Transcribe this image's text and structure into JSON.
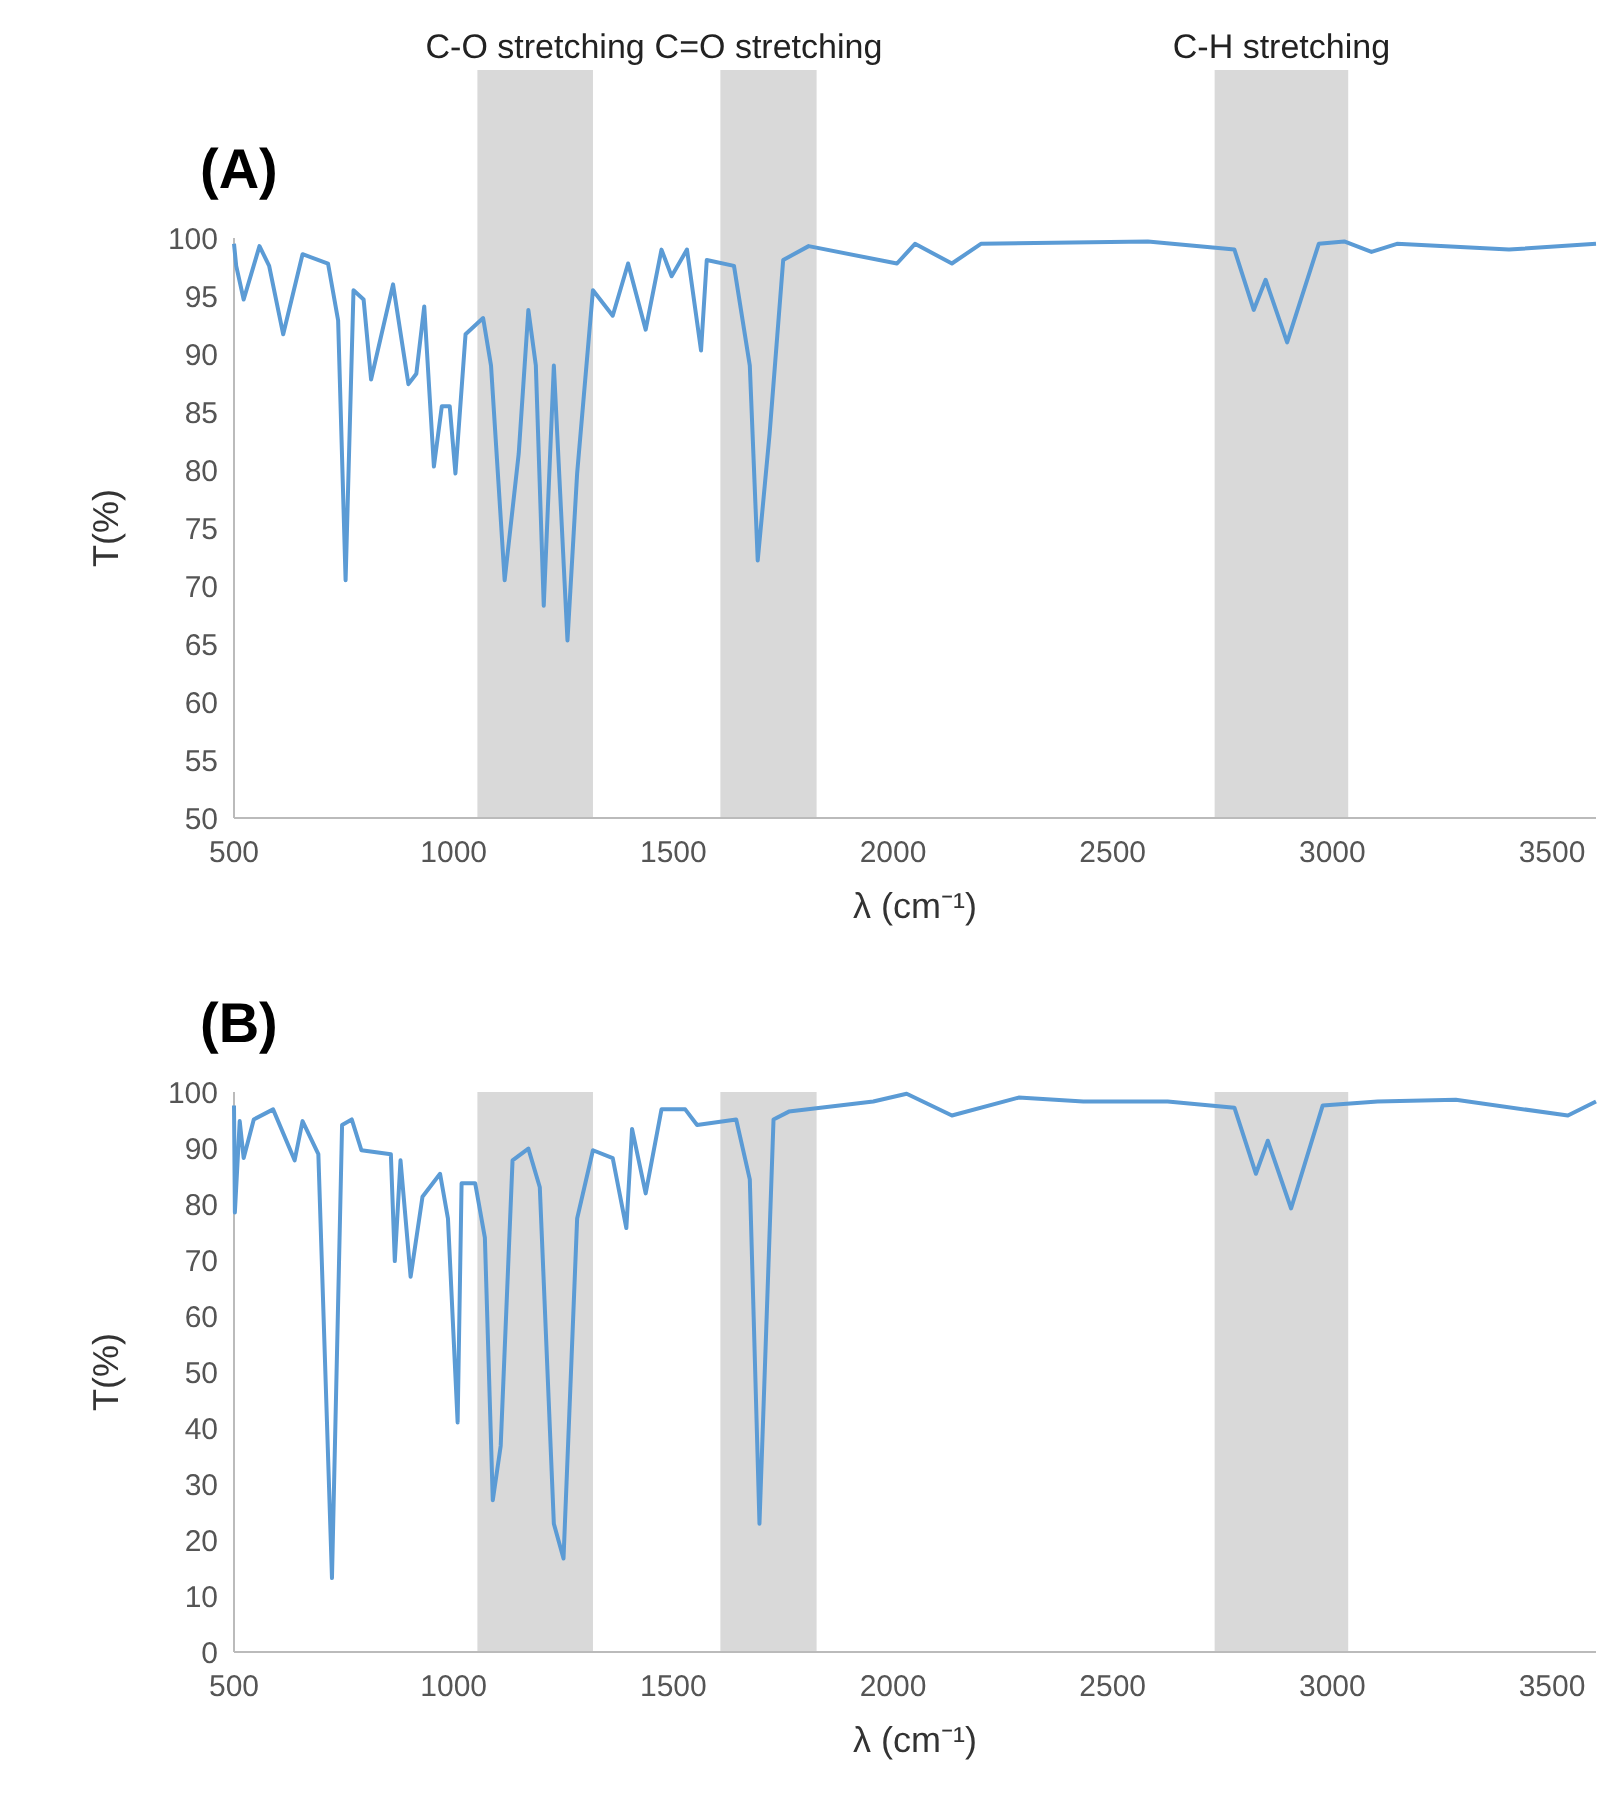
{
  "chart_data": [
    {
      "type": "line",
      "title": "(A)",
      "xlabel": "λ  (cm⁻¹)",
      "ylabel": "T(%)",
      "xlim": [
        500,
        3600
      ],
      "ylim": [
        50,
        100
      ],
      "xticks": [
        500,
        1000,
        1500,
        2000,
        2500,
        3000,
        3500
      ],
      "yticks": [
        50,
        55,
        60,
        65,
        70,
        75,
        80,
        85,
        90,
        95,
        100
      ],
      "grid": false,
      "marker": "none",
      "line_style": "solid",
      "bands": [
        {
          "axis": "x",
          "from": 1054,
          "to": 1317,
          "label": "C-O stretching",
          "color": "#d9d9d9"
        },
        {
          "axis": "x",
          "from": 1607,
          "to": 1826,
          "label": "C=O stretching",
          "color": "#d9d9d9"
        },
        {
          "axis": "x",
          "from": 2732,
          "to": 3036,
          "label": "C-H stretching",
          "color": "#d9d9d9"
        }
      ],
      "series": [
        {
          "color": "#5b9bd5",
          "x": [
            500,
            505,
            522,
            558,
            580,
            612,
            656,
            714,
            737,
            754,
            772,
            795,
            812,
            862,
            897,
            915,
            933,
            955,
            973,
            991,
            1004,
            1027,
            1067,
            1085,
            1116,
            1148,
            1170,
            1187,
            1205,
            1228,
            1259,
            1281,
            1317,
            1362,
            1397,
            1437,
            1473,
            1496,
            1531,
            1563,
            1576,
            1638,
            1674,
            1692,
            1719,
            1750,
            1808,
            2009,
            2050,
            2134,
            2200,
            2580,
            2777,
            2821,
            2848,
            2897,
            2969,
            3027,
            3089,
            3147,
            3402,
            3600
          ],
          "values": [
            99.5,
            97.6,
            94.7,
            99.3,
            97.6,
            91.7,
            98.6,
            97.8,
            92.9,
            70.5,
            95.5,
            94.7,
            87.8,
            96.0,
            87.4,
            88.3,
            94.1,
            80.3,
            85.5,
            85.5,
            79.7,
            91.7,
            93.1,
            89.0,
            70.5,
            81.4,
            93.8,
            89.0,
            68.3,
            89.0,
            65.3,
            79.7,
            95.5,
            93.3,
            97.8,
            92.1,
            99.0,
            96.7,
            99.0,
            90.3,
            98.1,
            97.6,
            89.0,
            72.2,
            83.1,
            98.1,
            99.3,
            97.8,
            99.5,
            97.8,
            99.5,
            99.7,
            99.0,
            93.8,
            96.4,
            91.0,
            99.5,
            99.7,
            98.8,
            99.5,
            99.0,
            99.5
          ]
        }
      ]
    },
    {
      "type": "line",
      "title": "(B)",
      "xlabel": "λ  (cm⁻¹)",
      "ylabel": "T(%)",
      "xlim": [
        500,
        3600
      ],
      "ylim": [
        0,
        100
      ],
      "xticks": [
        500,
        1000,
        1500,
        2000,
        2500,
        3000,
        3500
      ],
      "yticks": [
        0,
        10,
        20,
        30,
        40,
        50,
        60,
        70,
        80,
        90,
        100
      ],
      "grid": false,
      "marker": "none",
      "line_style": "solid",
      "bands": [
        {
          "axis": "x",
          "from": 1054,
          "to": 1317,
          "color": "#d9d9d9"
        },
        {
          "axis": "x",
          "from": 1607,
          "to": 1826,
          "color": "#d9d9d9"
        },
        {
          "axis": "x",
          "from": 2732,
          "to": 3036,
          "color": "#d9d9d9"
        }
      ],
      "series": [
        {
          "color": "#5b9bd5",
          "x": [
            500,
            502,
            513,
            522,
            545,
            589,
            638,
            656,
            692,
            723,
            746,
            768,
            790,
            857,
            866,
            879,
            902,
            929,
            969,
            987,
            1009,
            1018,
            1049,
            1071,
            1089,
            1107,
            1134,
            1170,
            1196,
            1228,
            1250,
            1281,
            1317,
            1362,
            1393,
            1406,
            1437,
            1473,
            1527,
            1554,
            1643,
            1674,
            1696,
            1728,
            1763,
            1955,
            2031,
            2134,
            2286,
            2433,
            2625,
            2777,
            2826,
            2853,
            2906,
            2978,
            3103,
            3281,
            3536,
            3600
          ],
          "values": [
            97.6,
            78.5,
            94.8,
            88.2,
            95.1,
            96.9,
            87.8,
            94.8,
            88.9,
            13.2,
            94.1,
            95.1,
            89.6,
            88.9,
            69.8,
            87.8,
            67.0,
            81.3,
            85.4,
            77.4,
            41.0,
            83.7,
            83.7,
            74.0,
            27.1,
            36.8,
            87.8,
            89.9,
            83.0,
            22.9,
            16.7,
            77.4,
            89.6,
            88.2,
            75.7,
            93.4,
            81.9,
            96.9,
            96.9,
            94.1,
            95.1,
            84.4,
            22.9,
            95.1,
            96.5,
            98.3,
            99.7,
            95.8,
            99.0,
            98.3,
            98.3,
            97.2,
            85.4,
            91.3,
            79.2,
            97.6,
            98.3,
            98.6,
            95.8,
            98.3
          ]
        }
      ]
    }
  ]
}
